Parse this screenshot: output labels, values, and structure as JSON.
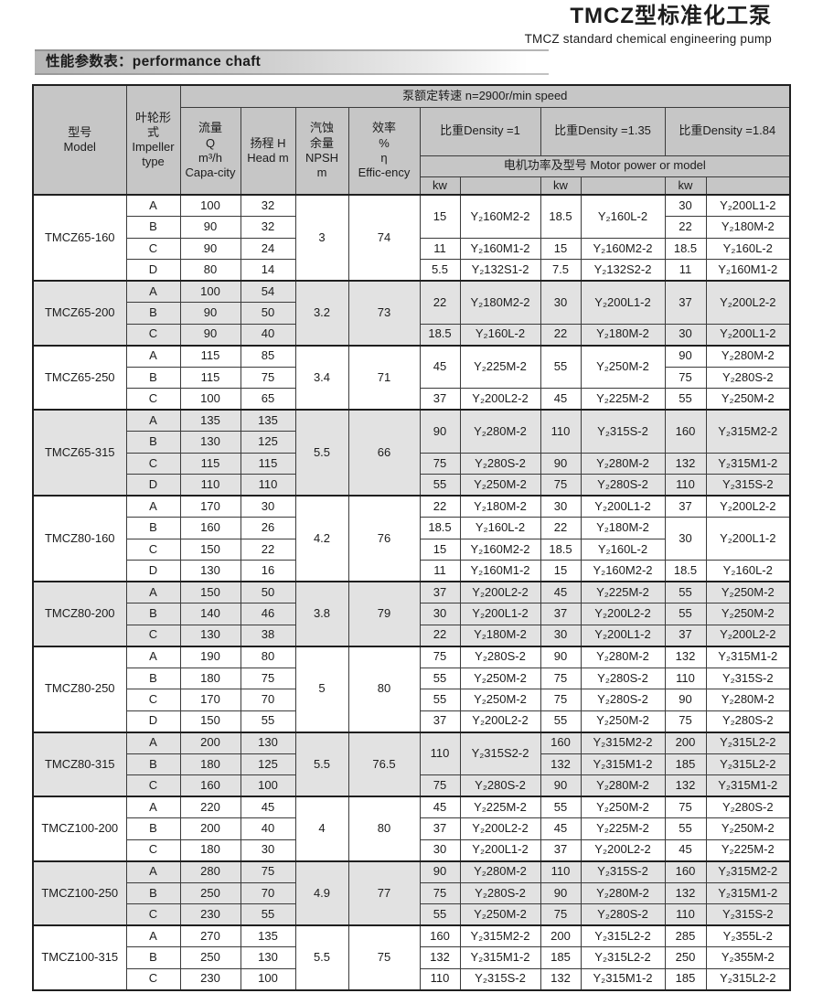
{
  "page": {
    "title_zh": "TMCZ型标准化工泵",
    "title_en": "TMCZ standard chemical engineering pump",
    "section_title": "性能参数表：performance chaft"
  },
  "colors": {
    "header_bg": "#c6c6c6",
    "shaded_row_bg": "#e2e2e2",
    "border": "#3b3b3b"
  },
  "table": {
    "speed_header": "泵额定转速  n=2900r/min speed",
    "headers": {
      "model": "型号\nModel",
      "impeller": "叶轮形\n式\nImpeller\ntype",
      "capacity": "流量\nQ\nm³/h\nCapa-city",
      "head": "扬程 H\nHead m",
      "npsh": "汽蚀\n余量\nNPSH\nm",
      "efficiency": "效率\n%\nη\nEffic-ency"
    },
    "density_headers": [
      "比重Density =1",
      "比重Density =1.35",
      "比重Density =1.84"
    ],
    "motor_header": "电机功率及型号  Motor power or model",
    "kw_label": "kw",
    "groups": [
      {
        "model": "TMCZ65-160",
        "npsh": "3",
        "eff": "74",
        "shaded": false,
        "rows": [
          {
            "imp": "A",
            "q": "100",
            "head": "32",
            "d1": {
              "kw": "15",
              "mo": "Y₂160M2-2",
              "rs": 2
            },
            "d135": {
              "kw": "18.5",
              "mo": "Y₂160L-2",
              "rs": 2
            },
            "d184": {
              "kw": "30",
              "mo": "Y₂200L1-2"
            }
          },
          {
            "imp": "B",
            "q": "90",
            "head": "32",
            "d1": null,
            "d135": null,
            "d184": {
              "kw": "22",
              "mo": "Y₂180M-2"
            }
          },
          {
            "imp": "C",
            "q": "90",
            "head": "24",
            "d1": {
              "kw": "11",
              "mo": "Y₂160M1-2"
            },
            "d135": {
              "kw": "15",
              "mo": "Y₂160M2-2"
            },
            "d184": {
              "kw": "18.5",
              "mo": "Y₂160L-2"
            }
          },
          {
            "imp": "D",
            "q": "80",
            "head": "14",
            "d1": {
              "kw": "5.5",
              "mo": "Y₂132S1-2"
            },
            "d135": {
              "kw": "7.5",
              "mo": "Y₂132S2-2"
            },
            "d184": {
              "kw": "11",
              "mo": "Y₂160M1-2"
            }
          }
        ]
      },
      {
        "model": "TMCZ65-200",
        "npsh": "3.2",
        "eff": "73",
        "shaded": true,
        "rows": [
          {
            "imp": "A",
            "q": "100",
            "head": "54",
            "d1": {
              "kw": "22",
              "mo": "Y₂180M2-2",
              "rs": 2
            },
            "d135": {
              "kw": "30",
              "mo": "Y₂200L1-2",
              "rs": 2
            },
            "d184": {
              "kw": "37",
              "mo": "Y₂200L2-2",
              "rs": 2
            }
          },
          {
            "imp": "B",
            "q": "90",
            "head": "50",
            "d1": null,
            "d135": null,
            "d184": null
          },
          {
            "imp": "C",
            "q": "90",
            "head": "40",
            "d1": {
              "kw": "18.5",
              "mo": "Y₂160L-2"
            },
            "d135": {
              "kw": "22",
              "mo": "Y₂180M-2"
            },
            "d184": {
              "kw": "30",
              "mo": "Y₂200L1-2"
            }
          }
        ]
      },
      {
        "model": "TMCZ65-250",
        "npsh": "3.4",
        "eff": "71",
        "shaded": false,
        "rows": [
          {
            "imp": "A",
            "q": "115",
            "head": "85",
            "d1": {
              "kw": "45",
              "mo": "Y₂225M-2",
              "rs": 2
            },
            "d135": {
              "kw": "55",
              "mo": "Y₂250M-2",
              "rs": 2
            },
            "d184": {
              "kw": "90",
              "mo": "Y₂280M-2"
            }
          },
          {
            "imp": "B",
            "q": "115",
            "head": "75",
            "d1": null,
            "d135": null,
            "d184": {
              "kw": "75",
              "mo": "Y₂280S-2"
            }
          },
          {
            "imp": "C",
            "q": "100",
            "head": "65",
            "d1": {
              "kw": "37",
              "mo": "Y₂200L2-2"
            },
            "d135": {
              "kw": "45",
              "mo": "Y₂225M-2"
            },
            "d184": {
              "kw": "55",
              "mo": "Y₂250M-2"
            }
          }
        ]
      },
      {
        "model": "TMCZ65-315",
        "npsh": "5.5",
        "eff": "66",
        "shaded": true,
        "rows": [
          {
            "imp": "A",
            "q": "135",
            "head": "135",
            "d1": {
              "kw": "90",
              "mo": "Y₂280M-2",
              "rs": 2
            },
            "d135": {
              "kw": "110",
              "mo": "Y₂315S-2",
              "rs": 2
            },
            "d184": {
              "kw": "160",
              "mo": "Y₂315M2-2",
              "rs": 2
            }
          },
          {
            "imp": "B",
            "q": "130",
            "head": "125",
            "d1": null,
            "d135": null,
            "d184": null
          },
          {
            "imp": "C",
            "q": "115",
            "head": "115",
            "d1": {
              "kw": "75",
              "mo": "Y₂280S-2"
            },
            "d135": {
              "kw": "90",
              "mo": "Y₂280M-2"
            },
            "d184": {
              "kw": "132",
              "mo": "Y₂315M1-2"
            }
          },
          {
            "imp": "D",
            "q": "110",
            "head": "110",
            "d1": {
              "kw": "55",
              "mo": "Y₂250M-2"
            },
            "d135": {
              "kw": "75",
              "mo": "Y₂280S-2"
            },
            "d184": {
              "kw": "110",
              "mo": "Y₂315S-2"
            }
          }
        ]
      },
      {
        "model": "TMCZ80-160",
        "npsh": "4.2",
        "eff": "76",
        "shaded": false,
        "rows": [
          {
            "imp": "A",
            "q": "170",
            "head": "30",
            "d1": {
              "kw": "22",
              "mo": "Y₂180M-2"
            },
            "d135": {
              "kw": "30",
              "mo": "Y₂200L1-2"
            },
            "d184": {
              "kw": "37",
              "mo": "Y₂200L2-2"
            }
          },
          {
            "imp": "B",
            "q": "160",
            "head": "26",
            "d1": {
              "kw": "18.5",
              "mo": "Y₂160L-2"
            },
            "d135": {
              "kw": "22",
              "mo": "Y₂180M-2"
            },
            "d184": {
              "kw": "30",
              "mo": "Y₂200L1-2",
              "rs": 2
            }
          },
          {
            "imp": "C",
            "q": "150",
            "head": "22",
            "d1": {
              "kw": "15",
              "mo": "Y₂160M2-2"
            },
            "d135": {
              "kw": "18.5",
              "mo": "Y₂160L-2"
            },
            "d184": null
          },
          {
            "imp": "D",
            "q": "130",
            "head": "16",
            "d1": {
              "kw": "11",
              "mo": "Y₂160M1-2"
            },
            "d135": {
              "kw": "15",
              "mo": "Y₂160M2-2"
            },
            "d184": {
              "kw": "18.5",
              "mo": "Y₂160L-2"
            }
          }
        ]
      },
      {
        "model": "TMCZ80-200",
        "npsh": "3.8",
        "eff": "79",
        "shaded": true,
        "rows": [
          {
            "imp": "A",
            "q": "150",
            "head": "50",
            "d1": {
              "kw": "37",
              "mo": "Y₂200L2-2"
            },
            "d135": {
              "kw": "45",
              "mo": "Y₂225M-2"
            },
            "d184": {
              "kw": "55",
              "mo": "Y₂250M-2"
            }
          },
          {
            "imp": "B",
            "q": "140",
            "head": "46",
            "d1": {
              "kw": "30",
              "mo": "Y₂200L1-2"
            },
            "d135": {
              "kw": "37",
              "mo": "Y₂200L2-2"
            },
            "d184": {
              "kw": "55",
              "mo": "Y₂250M-2"
            }
          },
          {
            "imp": "C",
            "q": "130",
            "head": "38",
            "d1": {
              "kw": "22",
              "mo": "Y₂180M-2"
            },
            "d135": {
              "kw": "30",
              "mo": "Y₂200L1-2"
            },
            "d184": {
              "kw": "37",
              "mo": "Y₂200L2-2"
            }
          }
        ]
      },
      {
        "model": "TMCZ80-250",
        "npsh": "5",
        "eff": "80",
        "shaded": false,
        "rows": [
          {
            "imp": "A",
            "q": "190",
            "head": "80",
            "d1": {
              "kw": "75",
              "mo": "Y₂280S-2"
            },
            "d135": {
              "kw": "90",
              "mo": "Y₂280M-2"
            },
            "d184": {
              "kw": "132",
              "mo": "Y₂315M1-2"
            }
          },
          {
            "imp": "B",
            "q": "180",
            "head": "75",
            "d1": {
              "kw": "55",
              "mo": "Y₂250M-2"
            },
            "d135": {
              "kw": "75",
              "mo": "Y₂280S-2"
            },
            "d184": {
              "kw": "110",
              "mo": "Y₂315S-2"
            }
          },
          {
            "imp": "C",
            "q": "170",
            "head": "70",
            "d1": {
              "kw": "55",
              "mo": "Y₂250M-2"
            },
            "d135": {
              "kw": "75",
              "mo": "Y₂280S-2"
            },
            "d184": {
              "kw": "90",
              "mo": "Y₂280M-2"
            }
          },
          {
            "imp": "D",
            "q": "150",
            "head": "55",
            "d1": {
              "kw": "37",
              "mo": "Y₂200L2-2"
            },
            "d135": {
              "kw": "55",
              "mo": "Y₂250M-2"
            },
            "d184": {
              "kw": "75",
              "mo": "Y₂280S-2"
            }
          }
        ]
      },
      {
        "model": "TMCZ80-315",
        "npsh": "5.5",
        "eff": "76.5",
        "shaded": true,
        "rows": [
          {
            "imp": "A",
            "q": "200",
            "head": "130",
            "d1": {
              "kw": "110",
              "mo": "Y₂315S2-2",
              "rs": 2
            },
            "d135": {
              "kw": "160",
              "mo": "Y₂315M2-2"
            },
            "d184": {
              "kw": "200",
              "mo": "Y₂315L2-2"
            }
          },
          {
            "imp": "B",
            "q": "180",
            "head": "125",
            "d1": null,
            "d135": {
              "kw": "132",
              "mo": "Y₂315M1-2"
            },
            "d184": {
              "kw": "185",
              "mo": "Y₂315L2-2"
            }
          },
          {
            "imp": "C",
            "q": "160",
            "head": "100",
            "d1": {
              "kw": "75",
              "mo": "Y₂280S-2"
            },
            "d135": {
              "kw": "90",
              "mo": "Y₂280M-2"
            },
            "d184": {
              "kw": "132",
              "mo": "Y₂315M1-2"
            }
          }
        ]
      },
      {
        "model": "TMCZ100-200",
        "npsh": "4",
        "eff": "80",
        "shaded": false,
        "rows": [
          {
            "imp": "A",
            "q": "220",
            "head": "45",
            "d1": {
              "kw": "45",
              "mo": "Y₂225M-2"
            },
            "d135": {
              "kw": "55",
              "mo": "Y₂250M-2"
            },
            "d184": {
              "kw": "75",
              "mo": "Y₂280S-2"
            }
          },
          {
            "imp": "B",
            "q": "200",
            "head": "40",
            "d1": {
              "kw": "37",
              "mo": "Y₂200L2-2"
            },
            "d135": {
              "kw": "45",
              "mo": "Y₂225M-2"
            },
            "d184": {
              "kw": "55",
              "mo": "Y₂250M-2"
            }
          },
          {
            "imp": "C",
            "q": "180",
            "head": "30",
            "d1": {
              "kw": "30",
              "mo": "Y₂200L1-2"
            },
            "d135": {
              "kw": "37",
              "mo": "Y₂200L2-2"
            },
            "d184": {
              "kw": "45",
              "mo": "Y₂225M-2"
            }
          }
        ]
      },
      {
        "model": "TMCZ100-250",
        "npsh": "4.9",
        "eff": "77",
        "shaded": true,
        "rows": [
          {
            "imp": "A",
            "q": "280",
            "head": "75",
            "d1": {
              "kw": "90",
              "mo": "Y₂280M-2"
            },
            "d135": {
              "kw": "110",
              "mo": "Y₂315S-2"
            },
            "d184": {
              "kw": "160",
              "mo": "Y₂315M2-2"
            }
          },
          {
            "imp": "B",
            "q": "250",
            "head": "70",
            "d1": {
              "kw": "75",
              "mo": "Y₂280S-2"
            },
            "d135": {
              "kw": "90",
              "mo": "Y₂280M-2"
            },
            "d184": {
              "kw": "132",
              "mo": "Y₂315M1-2"
            }
          },
          {
            "imp": "C",
            "q": "230",
            "head": "55",
            "d1": {
              "kw": "55",
              "mo": "Y₂250M-2"
            },
            "d135": {
              "kw": "75",
              "mo": "Y₂280S-2"
            },
            "d184": {
              "kw": "110",
              "mo": "Y₂315S-2"
            }
          }
        ]
      },
      {
        "model": "TMCZ100-315",
        "npsh": "5.5",
        "eff": "75",
        "shaded": false,
        "rows": [
          {
            "imp": "A",
            "q": "270",
            "head": "135",
            "d1": {
              "kw": "160",
              "mo": "Y₂315M2-2"
            },
            "d135": {
              "kw": "200",
              "mo": "Y₂315L2-2"
            },
            "d184": {
              "kw": "285",
              "mo": "Y₂355L-2"
            }
          },
          {
            "imp": "B",
            "q": "250",
            "head": "130",
            "d1": {
              "kw": "132",
              "mo": "Y₂315M1-2"
            },
            "d135": {
              "kw": "185",
              "mo": "Y₂315L2-2"
            },
            "d184": {
              "kw": "250",
              "mo": "Y₂355M-2"
            }
          },
          {
            "imp": "C",
            "q": "230",
            "head": "100",
            "d1": {
              "kw": "110",
              "mo": "Y₂315S-2"
            },
            "d135": {
              "kw": "132",
              "mo": "Y₂315M1-2"
            },
            "d184": {
              "kw": "185",
              "mo": "Y₂315L2-2"
            }
          }
        ]
      }
    ]
  }
}
